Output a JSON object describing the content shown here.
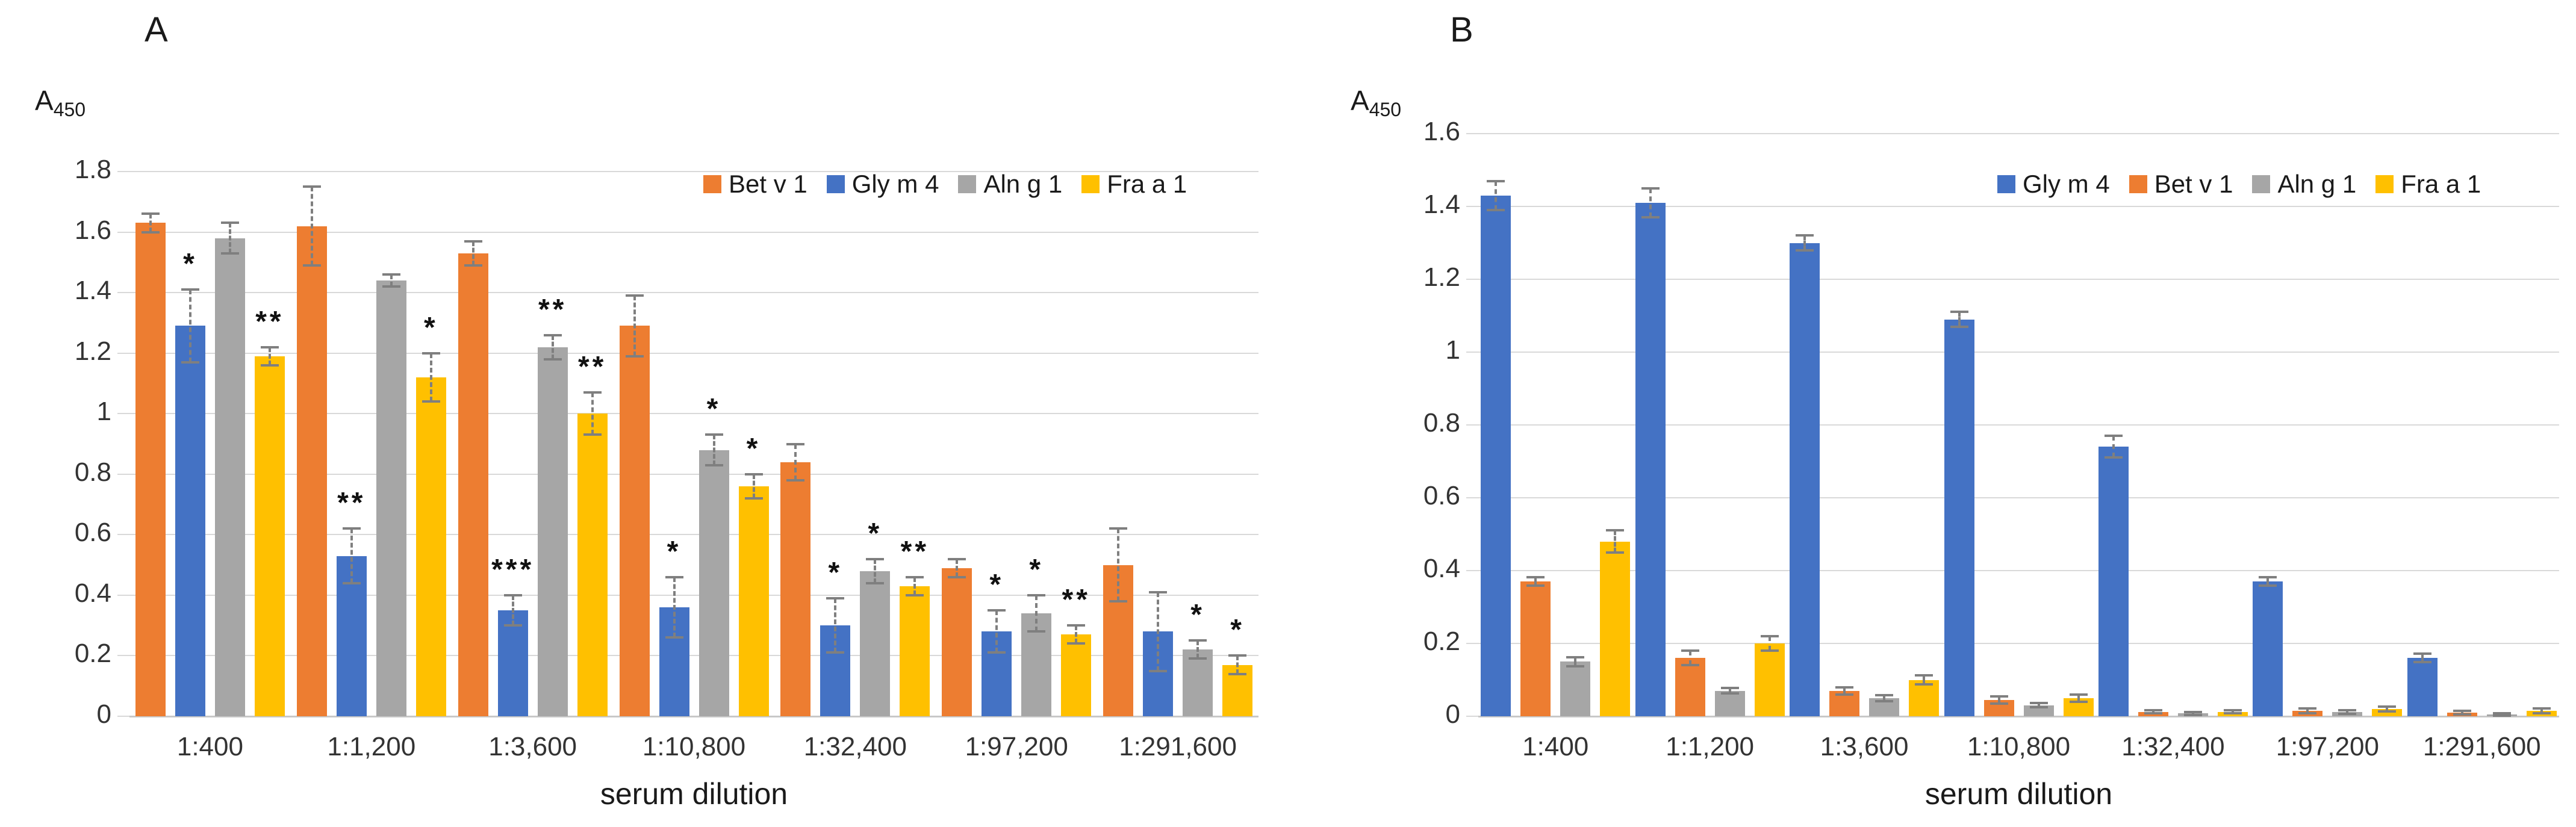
{
  "figure": {
    "background": "#ffffff",
    "x_axis_title": "serum dilution",
    "y_axis_title_main": "A",
    "y_axis_title_sub": "450"
  },
  "colors": {
    "orange": "#ED7D31",
    "blue": "#4472C4",
    "gray": "#A6A6A6",
    "yellow": "#FFC000",
    "gridline": "#D9D9D9",
    "error_bar": "#7F7F7F",
    "text": "#262626"
  },
  "chart_data": [
    {
      "panel_label": "A",
      "type": "bar",
      "y_axis": {
        "label_main": "A",
        "label_sub": "450",
        "max": 1.8,
        "step": 0.2,
        "ticks": [
          "1.8",
          "1.6",
          "1.4",
          "1.2",
          "1",
          "0.8",
          "0.6",
          "0.4",
          "0.2",
          "0"
        ]
      },
      "x_axis": {
        "title": "serum dilution",
        "categories": [
          "1:400",
          "1:1,200",
          "1:3,600",
          "1:10,800",
          "1:32,400",
          "1:97,200",
          "1:291,600"
        ]
      },
      "legend_position": "top-right-inside",
      "grid": true,
      "series": [
        {
          "name": "Bet v 1",
          "color": "#ED7D31",
          "values": [
            1.63,
            1.62,
            1.53,
            1.29,
            0.84,
            0.49,
            0.5
          ],
          "errors": [
            0.03,
            0.13,
            0.04,
            0.1,
            0.06,
            0.03,
            0.12
          ],
          "sig": [
            "",
            "",
            "",
            "",
            "",
            "",
            ""
          ]
        },
        {
          "name": "Gly m 4",
          "color": "#4472C4",
          "values": [
            1.29,
            0.53,
            0.35,
            0.36,
            0.3,
            0.28,
            0.28
          ],
          "errors": [
            0.12,
            0.09,
            0.05,
            0.1,
            0.09,
            0.07,
            0.13
          ],
          "sig": [
            "*",
            "**",
            "***",
            "*",
            "*",
            "*",
            ""
          ]
        },
        {
          "name": "Aln g 1",
          "color": "#A6A6A6",
          "values": [
            1.58,
            1.44,
            1.22,
            0.88,
            0.48,
            0.34,
            0.22
          ],
          "errors": [
            0.05,
            0.02,
            0.04,
            0.05,
            0.04,
            0.06,
            0.03
          ],
          "sig": [
            "",
            "",
            "**",
            "*",
            "*",
            "*",
            "*"
          ]
        },
        {
          "name": "Fra a 1",
          "color": "#FFC000",
          "values": [
            1.19,
            1.12,
            1.0,
            0.76,
            0.43,
            0.27,
            0.17
          ],
          "errors": [
            0.03,
            0.08,
            0.07,
            0.04,
            0.03,
            0.03,
            0.03
          ],
          "sig": [
            "**",
            "*",
            "**",
            "*",
            "**",
            "**",
            "*"
          ]
        }
      ]
    },
    {
      "panel_label": "B",
      "type": "bar",
      "y_axis": {
        "label_main": "A",
        "label_sub": "450",
        "max": 1.6,
        "step": 0.2,
        "ticks": [
          "1.6",
          "1.4",
          "1.2",
          "1",
          "0.8",
          "0.6",
          "0.4",
          "0.2",
          "0"
        ]
      },
      "x_axis": {
        "title": "serum dilution",
        "categories": [
          "1:400",
          "1:1,200",
          "1:3,600",
          "1:10,800",
          "1:32,400",
          "1:97,200",
          "1:291,600"
        ]
      },
      "legend_position": "top-right-inside",
      "grid": true,
      "series": [
        {
          "name": "Gly m 4",
          "color": "#4472C4",
          "values": [
            1.43,
            1.41,
            1.3,
            1.09,
            0.74,
            0.37,
            0.16
          ],
          "errors": [
            0.04,
            0.04,
            0.02,
            0.02,
            0.03,
            0.012,
            0.012
          ],
          "sig": [
            "",
            "",
            "",
            "",
            "",
            "",
            ""
          ]
        },
        {
          "name": "Bet v 1",
          "color": "#ED7D31",
          "values": [
            0.37,
            0.16,
            0.07,
            0.045,
            0.012,
            0.015,
            0.01
          ],
          "errors": [
            0.012,
            0.02,
            0.01,
            0.01,
            0.004,
            0.006,
            0.005
          ],
          "sig": [
            "",
            "",
            "",
            "",
            "",
            "",
            ""
          ]
        },
        {
          "name": "Aln g 1",
          "color": "#A6A6A6",
          "values": [
            0.15,
            0.07,
            0.05,
            0.03,
            0.008,
            0.012,
            0.005
          ],
          "errors": [
            0.012,
            0.008,
            0.008,
            0.006,
            0.004,
            0.005,
            0.003
          ],
          "sig": [
            "",
            "",
            "",
            "",
            "",
            "",
            ""
          ]
        },
        {
          "name": "Fra a 1",
          "color": "#FFC000",
          "values": [
            0.48,
            0.2,
            0.1,
            0.05,
            0.012,
            0.02,
            0.015
          ],
          "errors": [
            0.03,
            0.02,
            0.012,
            0.01,
            0.004,
            0.007,
            0.006
          ],
          "sig": [
            "",
            "",
            "",
            "",
            "",
            "",
            ""
          ]
        }
      ]
    }
  ]
}
